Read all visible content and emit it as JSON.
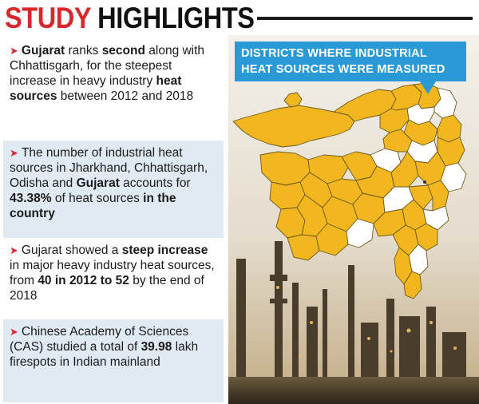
{
  "header": {
    "title_part1": "STUDY",
    "title_part2": "HIGHLIGHTS"
  },
  "points": [
    {
      "segments": [
        {
          "text": "Gujarat",
          "bold": true
        },
        {
          "text": " ranks ",
          "bold": false
        },
        {
          "text": "second",
          "bold": true
        },
        {
          "text": " along with Chhattisgarh, for the steepest increase in heavy industry ",
          "bold": false
        },
        {
          "text": "heat sources",
          "bold": true
        },
        {
          "text": " between 2012 and 2018",
          "bold": false
        }
      ]
    },
    {
      "segments": [
        {
          "text": "The number of industrial heat sources in Jharkhand, Chhattisgarh, Odisha and ",
          "bold": false
        },
        {
          "text": "Gujarat",
          "bold": true
        },
        {
          "text": " accounts for ",
          "bold": false
        },
        {
          "text": "43.38%",
          "bold": true
        },
        {
          "text": " of heat sources ",
          "bold": false
        },
        {
          "text": "in the country",
          "bold": true
        }
      ]
    },
    {
      "segments": [
        {
          "text": "Gujarat showed a ",
          "bold": false
        },
        {
          "text": "steep increase",
          "bold": true
        },
        {
          "text": " in major heavy industry heat sources, from ",
          "bold": false
        },
        {
          "text": "40 in 2012 to 52",
          "bold": true
        },
        {
          "text": " by the end of 2018",
          "bold": false
        }
      ]
    },
    {
      "segments": [
        {
          "text": "Chinese Academy of Sciences (CAS) studied a total of ",
          "bold": false
        },
        {
          "text": "39.98",
          "bold": true
        },
        {
          "text": " lakh firespots in Indian mainland",
          "bold": false
        }
      ]
    }
  ],
  "callout": {
    "line1": "DISTRICTS WHERE INDUSTRIAL",
    "line2": "HEAT SOURCES WERE MEASURED"
  },
  "colors": {
    "accent_red": "#d9282b",
    "district_measured": "#f2b61f",
    "district_other": "#ffffff",
    "callout_blue": "#2a9ad6",
    "panel_shade": "#dfeaf3"
  }
}
